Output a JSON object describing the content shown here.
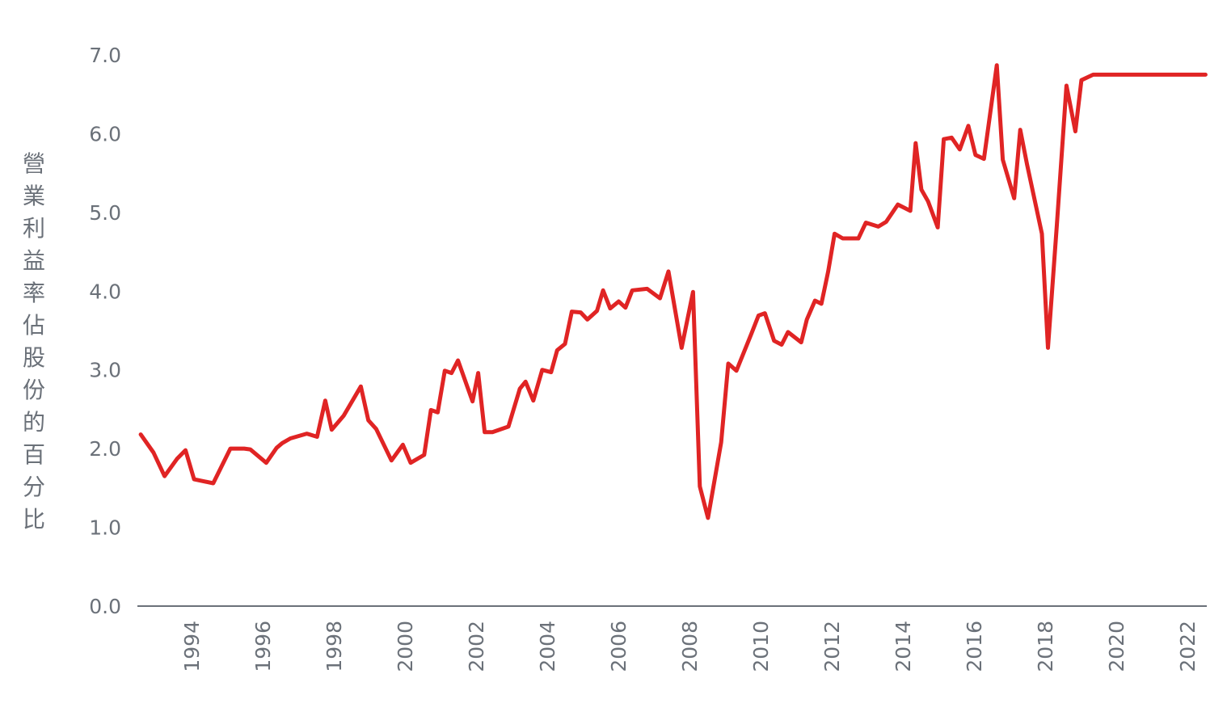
{
  "chart_data": {
    "type": "line",
    "ylabel": "營業利益率佔股份的百分比",
    "xlabel": "",
    "ylim": [
      0,
      7
    ],
    "xlim": [
      1992.6,
      2022.8
    ],
    "yticks": [
      "0.0",
      "1.0",
      "2.0",
      "3.0",
      "4.0",
      "5.0",
      "6.0",
      "7.0"
    ],
    "xticks": [
      "1994",
      "1996",
      "1998",
      "2000",
      "2002",
      "2004",
      "2006",
      "2008",
      "2010",
      "2012",
      "2014",
      "2016",
      "2018",
      "2020",
      "2022"
    ],
    "grid": false,
    "colors": {
      "line": "#e02424",
      "axis": "#6b7179",
      "text": "#6b7179"
    },
    "series": [
      {
        "x": [
          1992.57,
          1992.93,
          1993.24,
          1993.59,
          1993.83,
          1994.07,
          1994.61,
          1995.09,
          1995.48,
          1995.65,
          1996.1,
          1996.39,
          1996.55,
          1996.78,
          1997.24,
          1997.53,
          1997.76,
          1997.94,
          1998.28,
          1998.76,
          1998.97,
          1999.19,
          1999.62,
          1999.94,
          2000.16,
          2000.54,
          2000.73,
          2000.92,
          2001.12,
          2001.31,
          2001.49,
          2001.9,
          2002.06,
          2002.24,
          2002.46,
          2002.91,
          2003.23,
          2003.39,
          2003.61,
          2003.86,
          2004.11,
          2004.28,
          2004.5,
          2004.69,
          2004.94,
          2005.13,
          2005.4,
          2005.57,
          2005.77,
          2006.01,
          2006.2,
          2006.39,
          2006.81,
          2007.17,
          2007.41,
          2007.78,
          2008.1,
          2008.29,
          2008.52,
          2008.89,
          2009.09,
          2009.32,
          2009.74,
          2009.94,
          2010.12,
          2010.38,
          2010.59,
          2010.77,
          2011.14,
          2011.3,
          2011.53,
          2011.71,
          2011.9,
          2012.08,
          2012.31,
          2012.75,
          2012.96,
          2013.31,
          2013.53,
          2013.86,
          2014.21,
          2014.36,
          2014.52,
          2014.71,
          2014.98,
          2015.15,
          2015.37,
          2015.6,
          2015.84,
          2016.04,
          2016.28,
          2016.64,
          2016.81,
          2017.13,
          2017.3,
          2017.49,
          2017.91,
          2018.08,
          2018.33,
          2018.6,
          2018.85,
          2019.02,
          2019.35,
          2019.64,
          2019.87,
          2020.1,
          2020.35,
          2020.53,
          2020.77,
          2021.05,
          2021.3,
          2021.66,
          2021.95,
          2022.51
        ],
        "values": [
          2.18,
          1.95,
          1.65,
          1.87,
          1.98,
          1.61,
          1.56,
          2.0,
          2.0,
          1.99,
          1.82,
          2.01,
          2.07,
          2.13,
          2.19,
          2.15,
          2.61,
          2.24,
          2.42,
          2.79,
          2.36,
          2.25,
          1.85,
          2.05,
          1.82,
          1.92,
          2.49,
          2.46,
          2.99,
          2.96,
          3.12,
          2.6,
          2.96,
          2.21,
          2.21,
          2.28,
          2.76,
          2.85,
          2.61,
          3.0,
          2.97,
          3.25,
          3.33,
          3.74,
          3.73,
          3.64,
          3.75,
          4.01,
          3.78,
          3.87,
          3.79,
          4.01,
          4.03,
          3.91,
          4.25,
          3.28,
          3.99,
          1.52,
          1.12,
          2.08,
          3.08,
          2.99,
          3.46,
          3.69,
          3.72,
          3.37,
          3.32,
          3.48,
          3.35,
          3.64,
          3.88,
          3.84,
          4.25,
          4.73,
          4.67,
          4.67,
          4.87,
          4.82,
          4.88,
          5.1,
          5.02,
          5.88,
          5.29,
          5.14,
          4.81,
          5.93,
          5.95,
          5.8,
          6.1,
          5.73,
          5.68,
          6.87,
          5.67,
          5.18,
          6.05,
          5.61,
          4.73,
          3.28,
          4.84,
          6.61,
          6.03,
          6.68,
          6.75,
          6.75,
          6.75,
          6.75,
          6.75,
          6.75,
          6.75,
          6.75,
          6.75,
          6.75,
          6.75,
          6.75
        ]
      }
    ]
  }
}
